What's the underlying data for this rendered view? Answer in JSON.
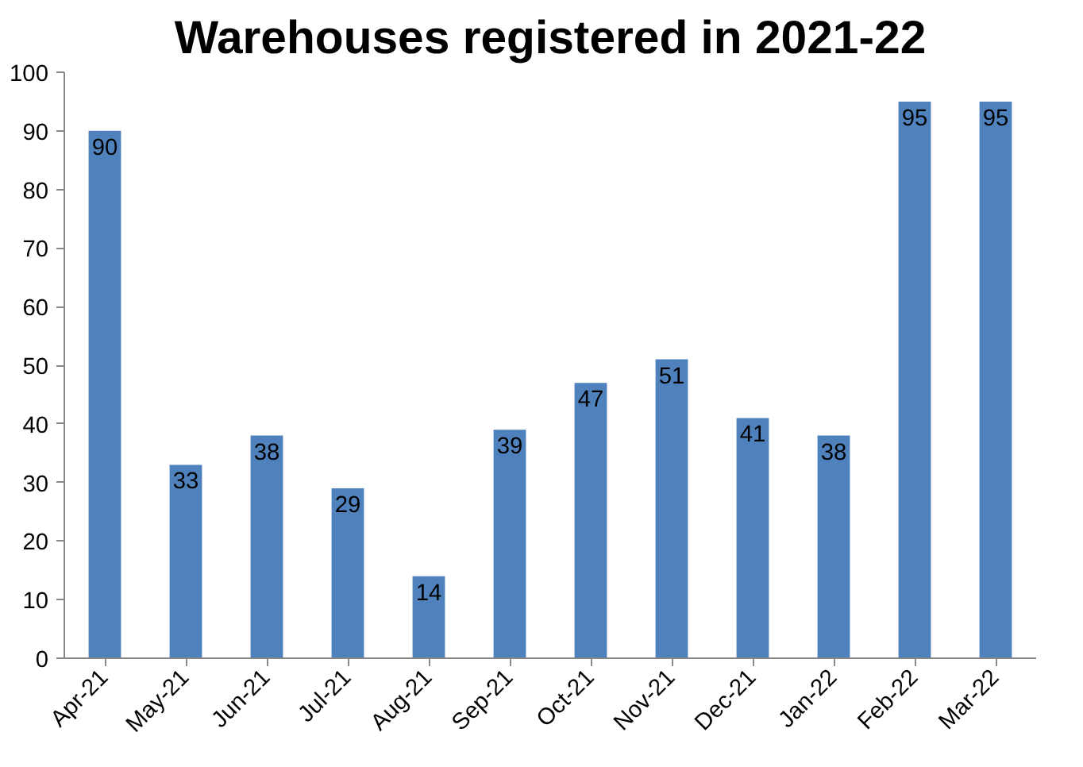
{
  "chart_data": {
    "type": "bar",
    "title": "Warehouses registered in 2021-22",
    "categories": [
      "Apr-21",
      "May-21",
      "Jun-21",
      "Jul-21",
      "Aug-21",
      "Sep-21",
      "Oct-21",
      "Nov-21",
      "Dec-21",
      "Jan-22",
      "Feb-22",
      "Mar-22"
    ],
    "values": [
      90,
      33,
      38,
      29,
      14,
      39,
      47,
      51,
      41,
      38,
      95,
      95
    ],
    "color": "#4f81bd",
    "ylim": [
      0,
      100
    ],
    "yticks": [
      0,
      10,
      20,
      30,
      40,
      50,
      60,
      70,
      80,
      90,
      100
    ],
    "grid": false,
    "data_labels": true
  }
}
